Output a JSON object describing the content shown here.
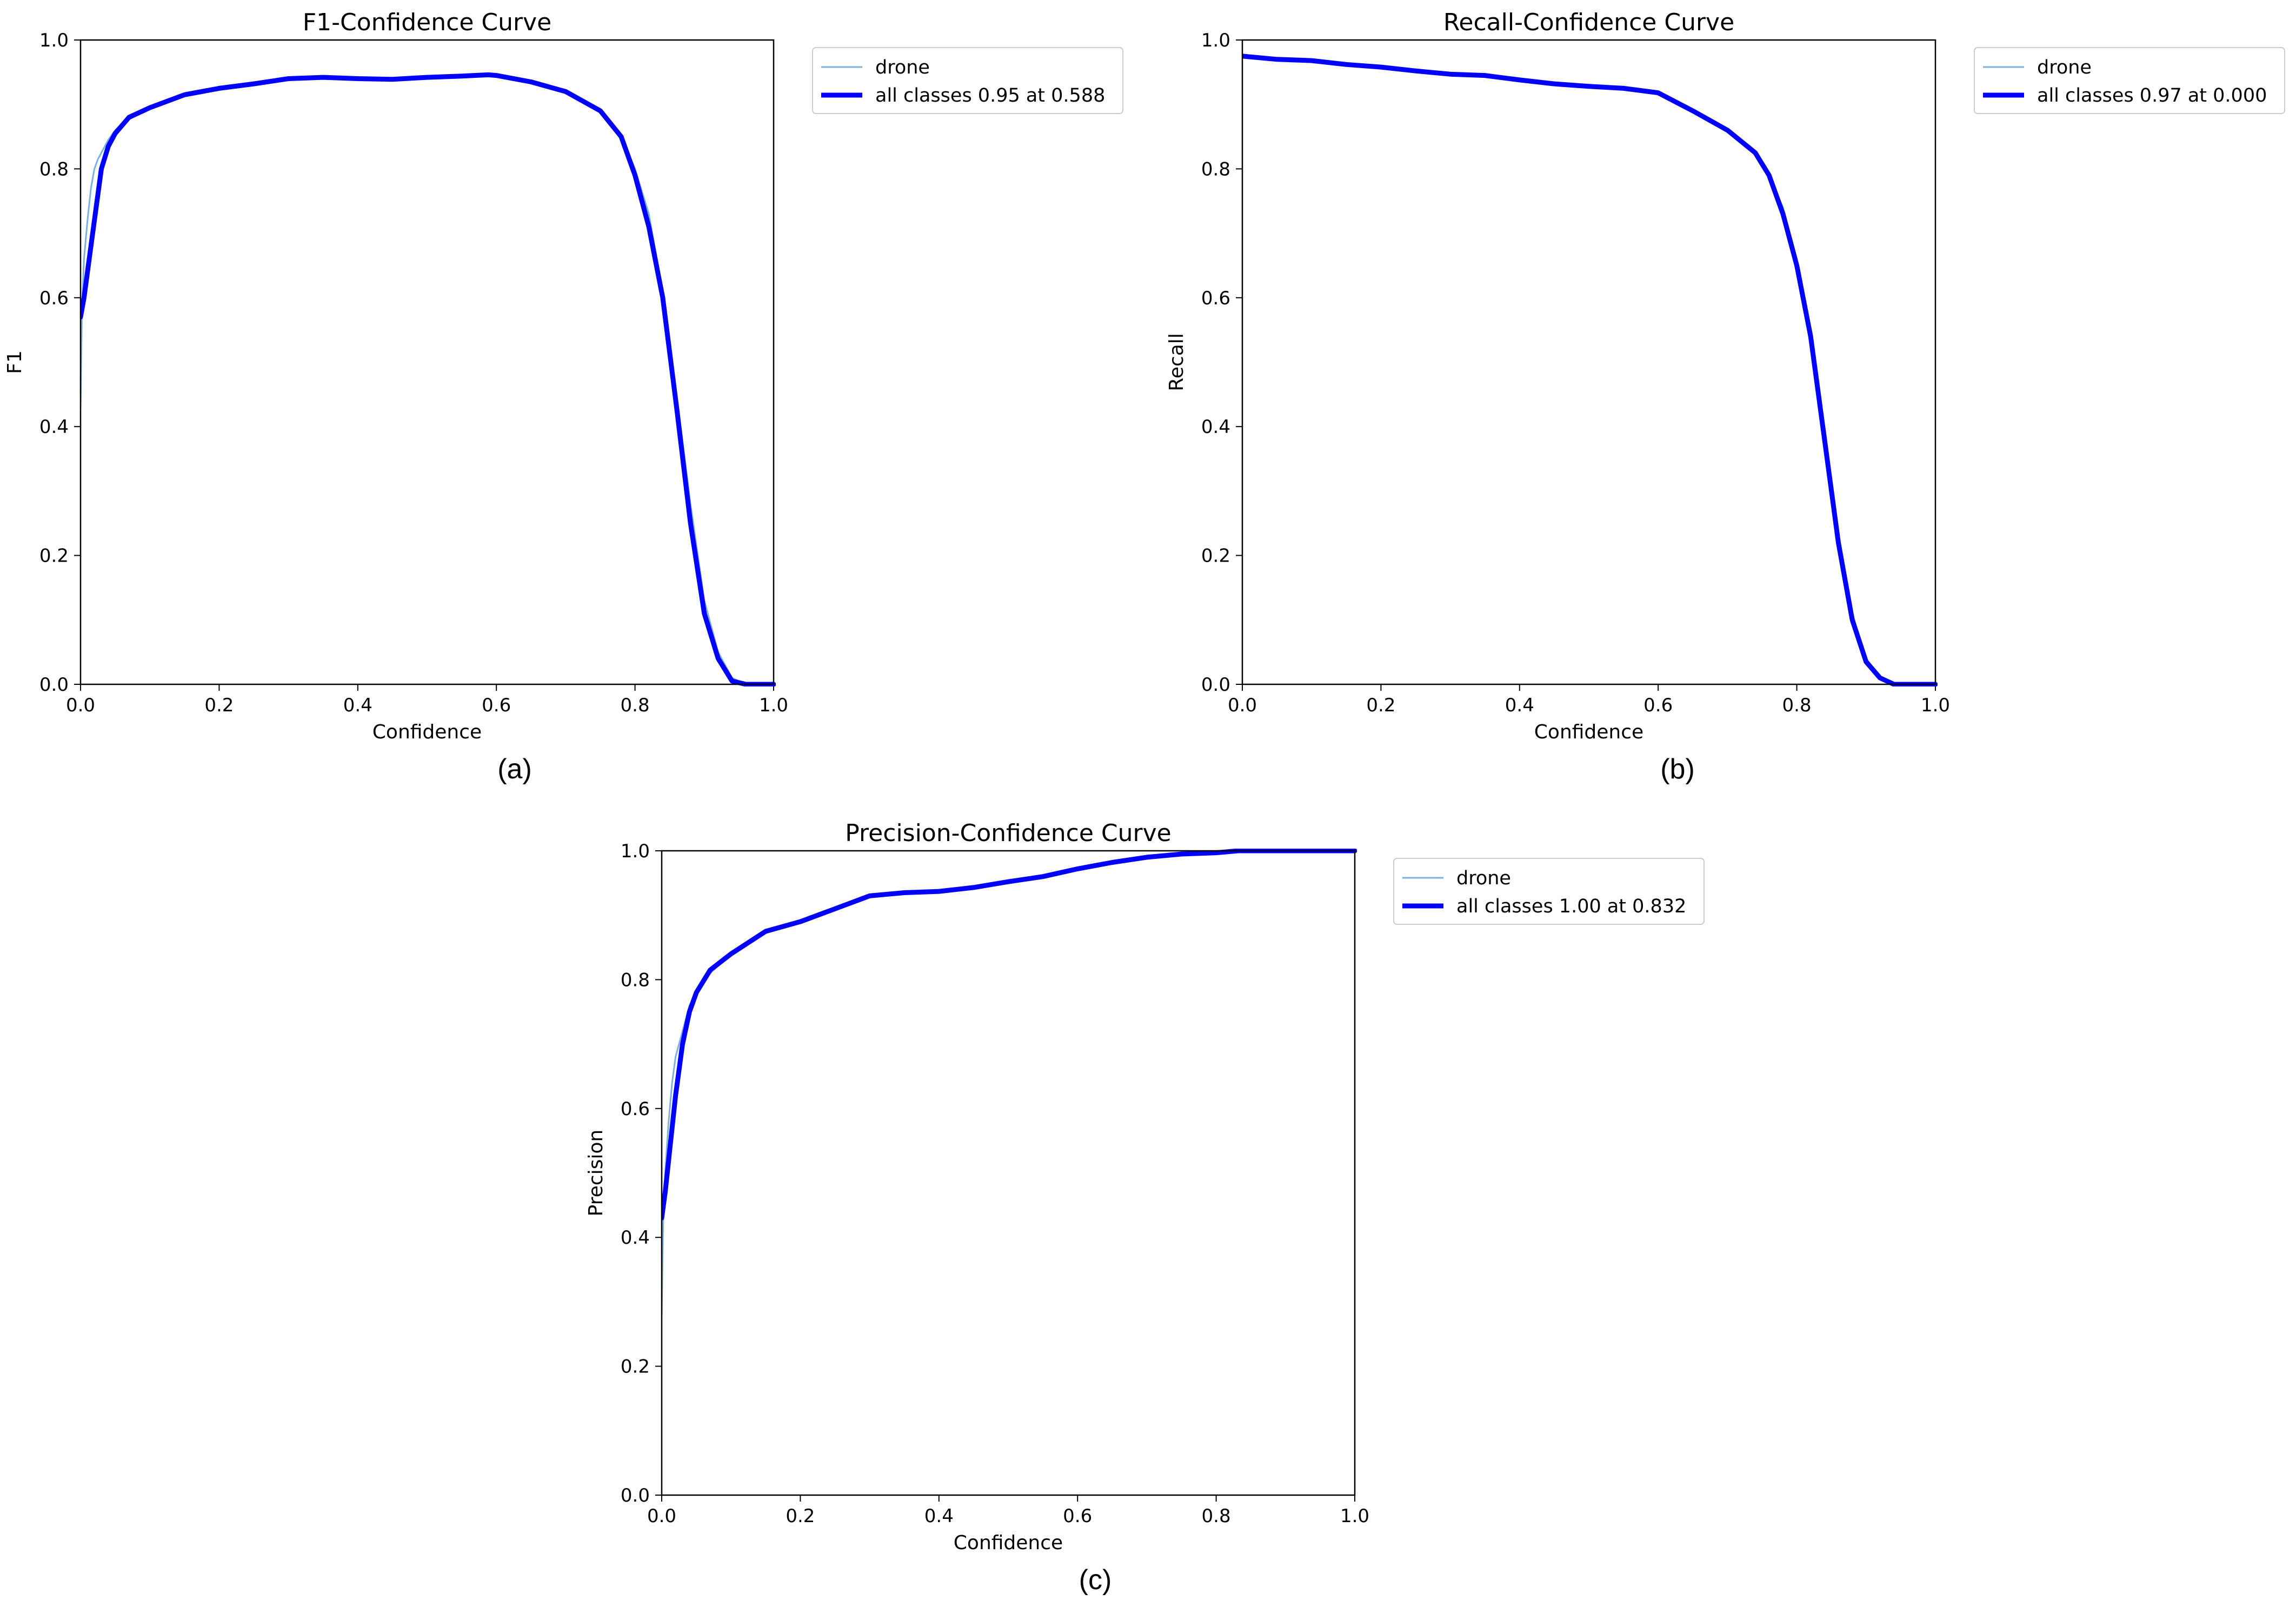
{
  "colors": {
    "class_series": "#7cb0e1",
    "all_classes_series": "#0000ff",
    "axes": "#000000",
    "legend_border": "#cccccc",
    "background": "#ffffff"
  },
  "chart_data": [
    {
      "type": "line",
      "panel_label": "(a)",
      "title": "F1-Confidence Curve",
      "xlabel": "Confidence",
      "ylabel": "F1",
      "xlim": [
        0,
        1
      ],
      "ylim": [
        0,
        1
      ],
      "x_ticks": [
        "0.0",
        "0.2",
        "0.4",
        "0.6",
        "0.8",
        "1.0"
      ],
      "y_ticks": [
        "0.0",
        "0.2",
        "0.4",
        "0.6",
        "0.8",
        "1.0"
      ],
      "grid": false,
      "legend_position": "outside-right",
      "series": [
        {
          "name": "drone",
          "x": [
            0.0,
            0.002,
            0.005,
            0.01,
            0.015,
            0.02,
            0.025,
            0.03,
            0.04,
            0.05,
            0.07,
            0.1,
            0.15,
            0.2,
            0.25,
            0.3,
            0.35,
            0.4,
            0.45,
            0.5,
            0.55,
            0.6,
            0.65,
            0.7,
            0.75,
            0.78,
            0.8,
            0.82,
            0.84,
            0.86,
            0.88,
            0.9,
            0.92,
            0.94,
            0.96,
            1.0
          ],
          "y": [
            0.43,
            0.58,
            0.66,
            0.72,
            0.77,
            0.8,
            0.815,
            0.825,
            0.845,
            0.86,
            0.88,
            0.895,
            0.915,
            0.925,
            0.932,
            0.94,
            0.942,
            0.94,
            0.938,
            0.942,
            0.943,
            0.945,
            0.935,
            0.92,
            0.89,
            0.85,
            0.8,
            0.73,
            0.61,
            0.45,
            0.28,
            0.13,
            0.05,
            0.01,
            0.0,
            0.0
          ]
        },
        {
          "name": "all classes 0.95 at 0.588",
          "x": [
            0.0,
            0.005,
            0.01,
            0.02,
            0.03,
            0.04,
            0.05,
            0.07,
            0.1,
            0.15,
            0.2,
            0.25,
            0.3,
            0.35,
            0.4,
            0.45,
            0.5,
            0.55,
            0.588,
            0.6,
            0.65,
            0.7,
            0.75,
            0.78,
            0.8,
            0.82,
            0.84,
            0.86,
            0.88,
            0.9,
            0.92,
            0.94,
            0.96,
            1.0
          ],
          "y": [
            0.57,
            0.6,
            0.64,
            0.72,
            0.8,
            0.835,
            0.855,
            0.88,
            0.895,
            0.915,
            0.925,
            0.932,
            0.94,
            0.942,
            0.94,
            0.939,
            0.942,
            0.944,
            0.946,
            0.945,
            0.935,
            0.92,
            0.89,
            0.85,
            0.79,
            0.71,
            0.6,
            0.43,
            0.25,
            0.11,
            0.04,
            0.005,
            0.0,
            0.0
          ]
        }
      ]
    },
    {
      "type": "line",
      "panel_label": "(b)",
      "title": "Recall-Confidence Curve",
      "xlabel": "Confidence",
      "ylabel": "Recall",
      "xlim": [
        0,
        1
      ],
      "ylim": [
        0,
        1
      ],
      "x_ticks": [
        "0.0",
        "0.2",
        "0.4",
        "0.6",
        "0.8",
        "1.0"
      ],
      "y_ticks": [
        "0.0",
        "0.2",
        "0.4",
        "0.6",
        "0.8",
        "1.0"
      ],
      "grid": false,
      "legend_position": "outside-right",
      "series": [
        {
          "name": "drone",
          "x": [
            0.0,
            0.05,
            0.1,
            0.15,
            0.2,
            0.25,
            0.3,
            0.35,
            0.4,
            0.45,
            0.5,
            0.55,
            0.6,
            0.65,
            0.7,
            0.74,
            0.76,
            0.78,
            0.8,
            0.82,
            0.84,
            0.86,
            0.88,
            0.9,
            0.92,
            0.94,
            0.96,
            1.0
          ],
          "y": [
            0.975,
            0.97,
            0.968,
            0.962,
            0.958,
            0.952,
            0.947,
            0.945,
            0.938,
            0.932,
            0.928,
            0.925,
            0.918,
            0.89,
            0.86,
            0.825,
            0.79,
            0.74,
            0.66,
            0.55,
            0.39,
            0.23,
            0.11,
            0.04,
            0.012,
            0.002,
            0.0,
            0.0
          ]
        },
        {
          "name": "all classes 0.97 at 0.000",
          "x": [
            0.0,
            0.05,
            0.1,
            0.15,
            0.2,
            0.25,
            0.3,
            0.35,
            0.4,
            0.45,
            0.5,
            0.55,
            0.6,
            0.65,
            0.7,
            0.74,
            0.76,
            0.78,
            0.8,
            0.82,
            0.84,
            0.86,
            0.88,
            0.9,
            0.92,
            0.94,
            0.96,
            1.0
          ],
          "y": [
            0.975,
            0.97,
            0.968,
            0.962,
            0.958,
            0.952,
            0.947,
            0.945,
            0.938,
            0.932,
            0.928,
            0.925,
            0.918,
            0.89,
            0.86,
            0.825,
            0.79,
            0.73,
            0.65,
            0.54,
            0.38,
            0.22,
            0.1,
            0.035,
            0.01,
            0.0,
            0.0,
            0.0
          ]
        }
      ]
    },
    {
      "type": "line",
      "panel_label": "(c)",
      "title": "Precision-Confidence Curve",
      "xlabel": "Confidence",
      "ylabel": "Precision",
      "xlim": [
        0,
        1
      ],
      "ylim": [
        0,
        1
      ],
      "x_ticks": [
        "0.0",
        "0.2",
        "0.4",
        "0.6",
        "0.8",
        "1.0"
      ],
      "y_ticks": [
        "0.0",
        "0.2",
        "0.4",
        "0.6",
        "0.8",
        "1.0"
      ],
      "grid": false,
      "legend_position": "outside-right",
      "series": [
        {
          "name": "drone",
          "x": [
            0.0,
            0.002,
            0.005,
            0.01,
            0.015,
            0.02,
            0.025,
            0.03,
            0.04,
            0.05,
            0.07,
            0.1,
            0.15,
            0.2,
            0.25,
            0.3,
            0.35,
            0.4,
            0.45,
            0.5,
            0.55,
            0.6,
            0.65,
            0.7,
            0.75,
            0.8,
            0.832,
            0.9,
            1.0
          ],
          "y": [
            0.28,
            0.42,
            0.5,
            0.58,
            0.64,
            0.68,
            0.7,
            0.72,
            0.76,
            0.78,
            0.81,
            0.84,
            0.875,
            0.89,
            0.91,
            0.93,
            0.935,
            0.937,
            0.943,
            0.952,
            0.96,
            0.972,
            0.982,
            0.99,
            0.995,
            0.997,
            1.0,
            1.0,
            1.0
          ]
        },
        {
          "name": "all classes 1.00 at 0.832",
          "x": [
            0.0,
            0.005,
            0.01,
            0.02,
            0.03,
            0.04,
            0.05,
            0.07,
            0.1,
            0.15,
            0.2,
            0.25,
            0.3,
            0.35,
            0.4,
            0.45,
            0.5,
            0.55,
            0.6,
            0.65,
            0.7,
            0.75,
            0.8,
            0.832,
            0.9,
            1.0
          ],
          "y": [
            0.43,
            0.47,
            0.52,
            0.62,
            0.7,
            0.75,
            0.78,
            0.815,
            0.84,
            0.875,
            0.89,
            0.91,
            0.93,
            0.935,
            0.937,
            0.943,
            0.952,
            0.96,
            0.972,
            0.982,
            0.99,
            0.995,
            0.997,
            1.0,
            1.0,
            1.0
          ]
        }
      ]
    }
  ]
}
